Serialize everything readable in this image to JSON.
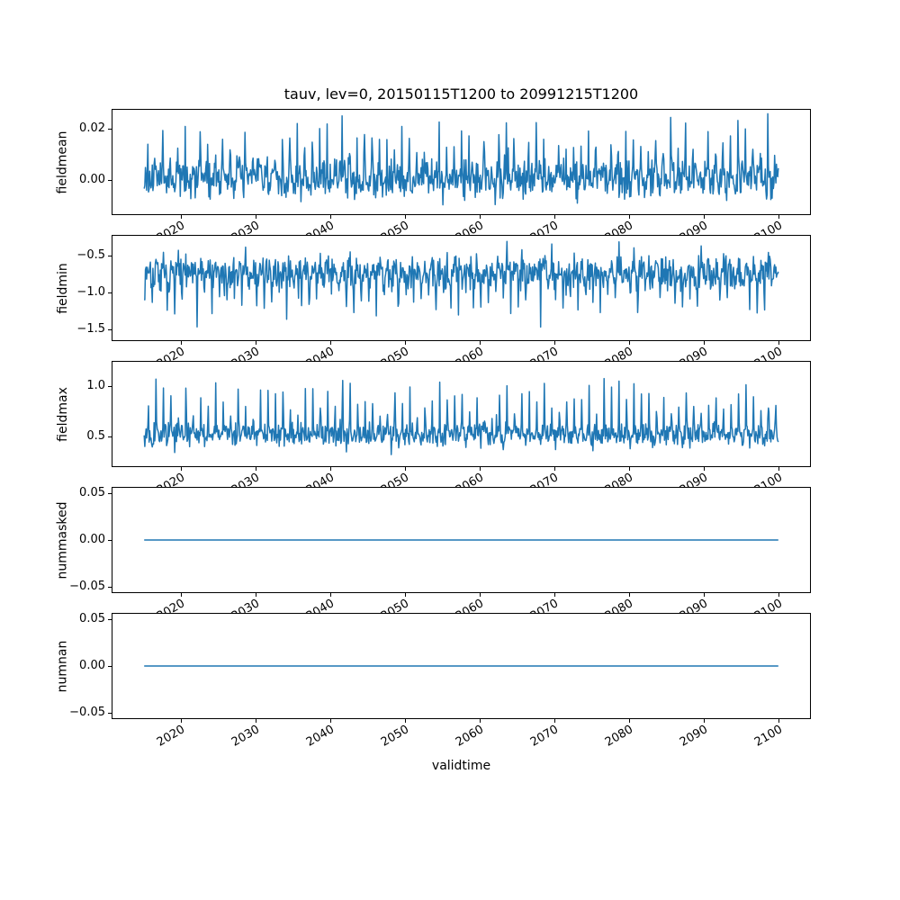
{
  "title": "tauv, lev=0, 20150115T1200 to 20991215T1200",
  "line_color": "#1f77b4",
  "axis_color": "#000000",
  "background_color": "#ffffff",
  "x_axis": {
    "label": "validtime",
    "tick_years": [
      2020,
      2030,
      2040,
      2050,
      2060,
      2070,
      2080,
      2090,
      2100
    ],
    "tick_labels": [
      "2020",
      "2030",
      "2040",
      "2050",
      "2060",
      "2070",
      "2080",
      "2090",
      "2100"
    ],
    "tick_rotation_deg": 30,
    "lim": [
      2010.8,
      2104.2
    ],
    "data_start": 2015.04,
    "data_end": 2099.96,
    "n_points": 1020
  },
  "chart_data": [
    {
      "type": "line",
      "name": "fieldmean",
      "ylabel": "fieldmean",
      "ylim": [
        -0.0133,
        0.0274
      ],
      "yticks": [
        {
          "v": 0.02,
          "label": "0.02"
        },
        {
          "v": 0.0,
          "label": "0.00"
        }
      ],
      "summary": {
        "description": "noisy monthly series around zero with annual upward spikes",
        "baseline_mean": 0.0,
        "typical_band": [
          -0.008,
          0.008
        ],
        "annual_peak_range": [
          0.012,
          0.023
        ],
        "max": 0.0264,
        "max_year": 2071,
        "min": -0.0115
      },
      "synth": {
        "kind": "seasonal",
        "seed": 42,
        "base": 0.0005,
        "noise": 0.009,
        "peak_month": 6,
        "spike": 0.014,
        "dip_month": 0,
        "dip_amp": -0.005,
        "big_prob": 0.01,
        "big_amp": 0.007,
        "clip": [
          -0.0115,
          0.0264
        ]
      }
    },
    {
      "type": "line",
      "name": "fieldmin",
      "ylabel": "fieldmin",
      "ylim": [
        -1.646,
        -0.232
      ],
      "yticks": [
        {
          "v": -0.5,
          "label": "−0.5"
        },
        {
          "v": -1.0,
          "label": "−1.0"
        },
        {
          "v": -1.5,
          "label": "−1.5"
        }
      ],
      "summary": {
        "description": "noisy monthly series around -0.75 with annual downward dips",
        "baseline_mean": -0.73,
        "typical_band": [
          -0.95,
          -0.52
        ],
        "annual_dip_range": [
          -1.3,
          -1.0
        ],
        "min": -1.585,
        "min_year": 2072,
        "max": -0.295
      },
      "synth": {
        "kind": "seasonal",
        "seed": 7,
        "base": -0.73,
        "noise": 0.26,
        "peak_month": 1,
        "spike": -0.38,
        "dip_month": 7,
        "dip_amp": 0.25,
        "big_prob": 0.005,
        "big_amp": -0.2,
        "clip": [
          -1.585,
          -0.295
        ]
      }
    },
    {
      "type": "line",
      "name": "fieldmax",
      "ylabel": "fieldmax",
      "ylim": [
        0.205,
        1.24
      ],
      "yticks": [
        {
          "v": 1.0,
          "label": "1.0"
        },
        {
          "v": 0.5,
          "label": "0.5"
        }
      ],
      "summary": {
        "description": "noisy monthly series around 0.52 with annual upward spikes",
        "baseline_mean": 0.52,
        "typical_band": [
          0.4,
          0.65
        ],
        "annual_peak_range": [
          0.85,
          1.05
        ],
        "max": 1.193,
        "max_year": 2090,
        "min": 0.252
      },
      "synth": {
        "kind": "seasonal",
        "seed": 13,
        "base": 0.52,
        "noise": 0.13,
        "peak_month": 7,
        "spike": 0.35,
        "dip_month": 1,
        "dip_amp": -0.12,
        "big_prob": 0.006,
        "big_amp": 0.15,
        "clip": [
          0.252,
          1.193
        ]
      }
    },
    {
      "type": "line",
      "name": "nummasked",
      "ylabel": "nummasked",
      "ylim": [
        -0.0558,
        0.0558
      ],
      "yticks": [
        {
          "v": 0.05,
          "label": "0.05"
        },
        {
          "v": 0.0,
          "label": "0.00"
        },
        {
          "v": -0.05,
          "label": "−0.05"
        }
      ],
      "summary": {
        "description": "constant zero line",
        "constant_value": 0.0
      },
      "synth": {
        "kind": "flat",
        "seed": 1,
        "value": 0.0
      }
    },
    {
      "type": "line",
      "name": "numnan",
      "ylabel": "numnan",
      "ylim": [
        -0.0558,
        0.0558
      ],
      "yticks": [
        {
          "v": 0.05,
          "label": "0.05"
        },
        {
          "v": 0.0,
          "label": "0.00"
        },
        {
          "v": -0.05,
          "label": "−0.05"
        }
      ],
      "summary": {
        "description": "constant zero line",
        "constant_value": 0.0
      },
      "synth": {
        "kind": "flat",
        "seed": 2,
        "value": 0.0
      }
    }
  ]
}
